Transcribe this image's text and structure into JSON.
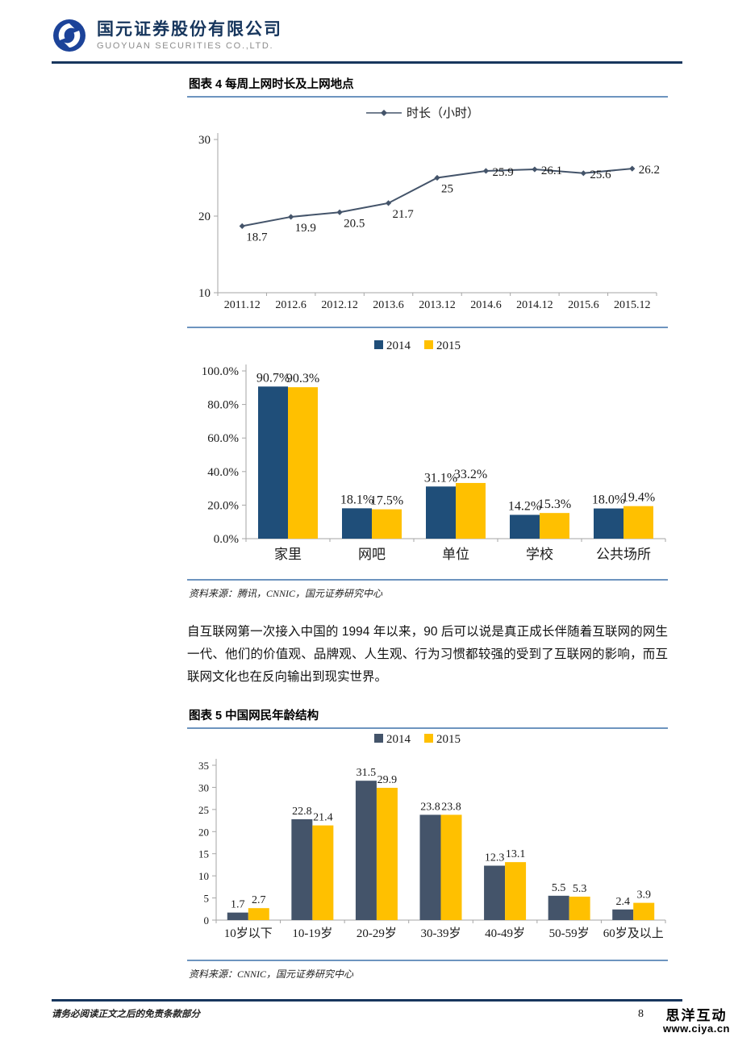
{
  "header": {
    "company_cn": "国元证券股份有限公司",
    "company_en": "GUOYUAN SECURITIES CO.,LTD."
  },
  "figure4": {
    "title": "图表 4 每周上网时长及上网地点",
    "source": "资料来源：腾讯，CNNIC，国元证券研究中心"
  },
  "paragraph": "自互联网第一次接入中国的 1994 年以来，90 后可以说是真正成长伴随着互联网的网生一代、他们的价值观、品牌观、人生观、行为习惯都较强的受到了互联网的影响，而互联网文化也在反向输出到现实世界。",
  "figure5": {
    "title": "图表 5 中国网民年龄结构",
    "source": "资料来源：CNNIC，国元证券研究中心"
  },
  "footer": {
    "disclaimer": "请务必阅读正文之后的免责条款部分",
    "page_number": "8",
    "watermark_line1": "思洋互动",
    "watermark_line2": "www.ciya.cn"
  },
  "colors": {
    "navy_rule": "#17365d",
    "blue_rule": "#6d94bf",
    "line_series": "#44546A",
    "bar_2014_fig4": "#1F4E79",
    "bar_2014_fig5": "#44546A",
    "bar_2015": "#FFC000",
    "axis_gray": "#a6a6a6"
  },
  "chart_data": [
    {
      "id": "weekly-hours-line",
      "type": "line",
      "title": "",
      "legend_position": "top",
      "x": [
        "2011.12",
        "2012.6",
        "2012.12",
        "2013.6",
        "2013.12",
        "2014.6",
        "2014.12",
        "2015.6",
        "2015.12"
      ],
      "series": [
        {
          "name": "时长（小时）",
          "color": "#44546A",
          "values": [
            18.7,
            19.9,
            20.5,
            21.7,
            25,
            25.9,
            26.1,
            25.6,
            26.2
          ],
          "labels": [
            "18.7",
            "19.9",
            "20.5",
            "21.7",
            "25",
            "25.9",
            "26.1",
            "25.6",
            "26.2"
          ]
        }
      ],
      "ylim": [
        10,
        30
      ],
      "yticks": [
        {
          "v": 10,
          "label": "10"
        },
        {
          "v": 20,
          "label": "20"
        },
        {
          "v": 30,
          "label": "30"
        }
      ],
      "grid": false
    },
    {
      "id": "internet-location-bars",
      "type": "bar",
      "title": "",
      "legend_position": "top",
      "categories": [
        "家里",
        "网吧",
        "单位",
        "学校",
        "公共场所"
      ],
      "series": [
        {
          "name": "2014",
          "color": "#1F4E79",
          "values": [
            90.7,
            18.1,
            31.1,
            14.2,
            18.0
          ],
          "labels": [
            "90.7%",
            "18.1%",
            "31.1%",
            "14.2%",
            "18.0%"
          ]
        },
        {
          "name": "2015",
          "color": "#FFC000",
          "values": [
            90.3,
            17.5,
            33.2,
            15.3,
            19.4
          ],
          "labels": [
            "90.3%",
            "17.5%",
            "33.2%",
            "15.3%",
            "19.4%"
          ]
        }
      ],
      "ylim": [
        0,
        100
      ],
      "yticks": [
        {
          "v": 0,
          "label": "0.0%"
        },
        {
          "v": 20,
          "label": "20.0%"
        },
        {
          "v": 40,
          "label": "40.0%"
        },
        {
          "v": 60,
          "label": "60.0%"
        },
        {
          "v": 80,
          "label": "80.0%"
        },
        {
          "v": 100,
          "label": "100.0%"
        }
      ],
      "grid": false
    },
    {
      "id": "age-structure-bars",
      "type": "bar",
      "title": "",
      "legend_position": "top",
      "categories": [
        "10岁以下",
        "10-19岁",
        "20-29岁",
        "30-39岁",
        "40-49岁",
        "50-59岁",
        "60岁及以上"
      ],
      "series": [
        {
          "name": "2014",
          "color": "#44546A",
          "values": [
            1.7,
            22.8,
            31.5,
            23.8,
            12.3,
            5.5,
            2.4
          ],
          "labels": [
            "1.7",
            "22.8",
            "31.5",
            "23.8",
            "12.3",
            "5.5",
            "2.4"
          ]
        },
        {
          "name": "2015",
          "color": "#FFC000",
          "values": [
            2.7,
            21.4,
            29.9,
            23.8,
            13.1,
            5.3,
            3.9
          ],
          "labels": [
            "2.7",
            "21.4",
            "29.9",
            "23.8",
            "13.1",
            "5.3",
            "3.9"
          ]
        }
      ],
      "ylim": [
        0,
        35
      ],
      "yticks": [
        {
          "v": 0,
          "label": "0"
        },
        {
          "v": 5,
          "label": "5"
        },
        {
          "v": 10,
          "label": "10"
        },
        {
          "v": 15,
          "label": "15"
        },
        {
          "v": 20,
          "label": "20"
        },
        {
          "v": 25,
          "label": "25"
        },
        {
          "v": 30,
          "label": "30"
        },
        {
          "v": 35,
          "label": "35"
        }
      ],
      "grid": false
    }
  ]
}
